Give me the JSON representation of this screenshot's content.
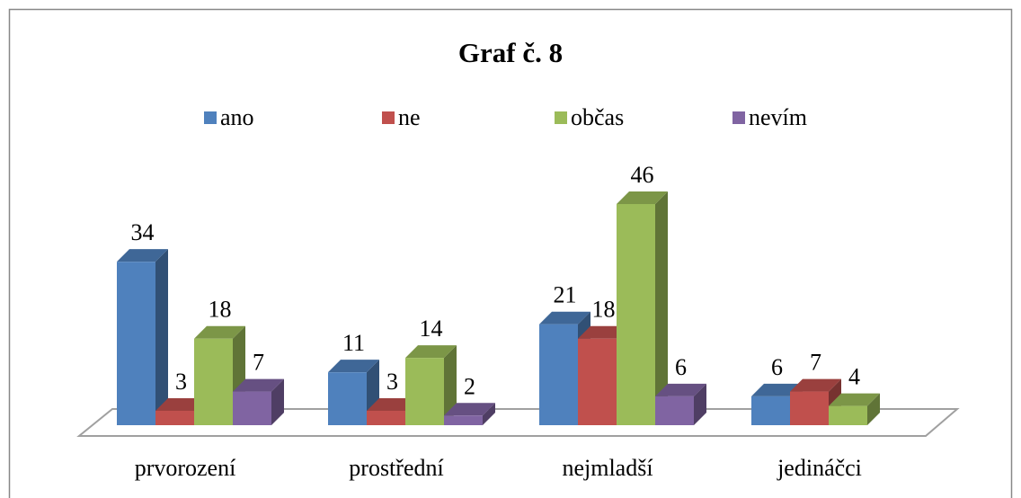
{
  "chart_data": {
    "type": "bar3d",
    "title": "Graf č. 8",
    "categories": [
      "prvorození",
      "prostřední",
      "nejmladší",
      "jedináčci"
    ],
    "series": [
      {
        "name": "ano",
        "color": "#4f81bd",
        "values": [
          34,
          11,
          21,
          6
        ]
      },
      {
        "name": "ne",
        "color": "#c0504d",
        "values": [
          3,
          3,
          18,
          7
        ]
      },
      {
        "name": "občas",
        "color": "#9bbb59",
        "values": [
          18,
          14,
          46,
          4
        ]
      },
      {
        "name": "nevím",
        "color": "#8064a2",
        "values": [
          7,
          2,
          6,
          null
        ]
      }
    ],
    "legend": "top"
  }
}
